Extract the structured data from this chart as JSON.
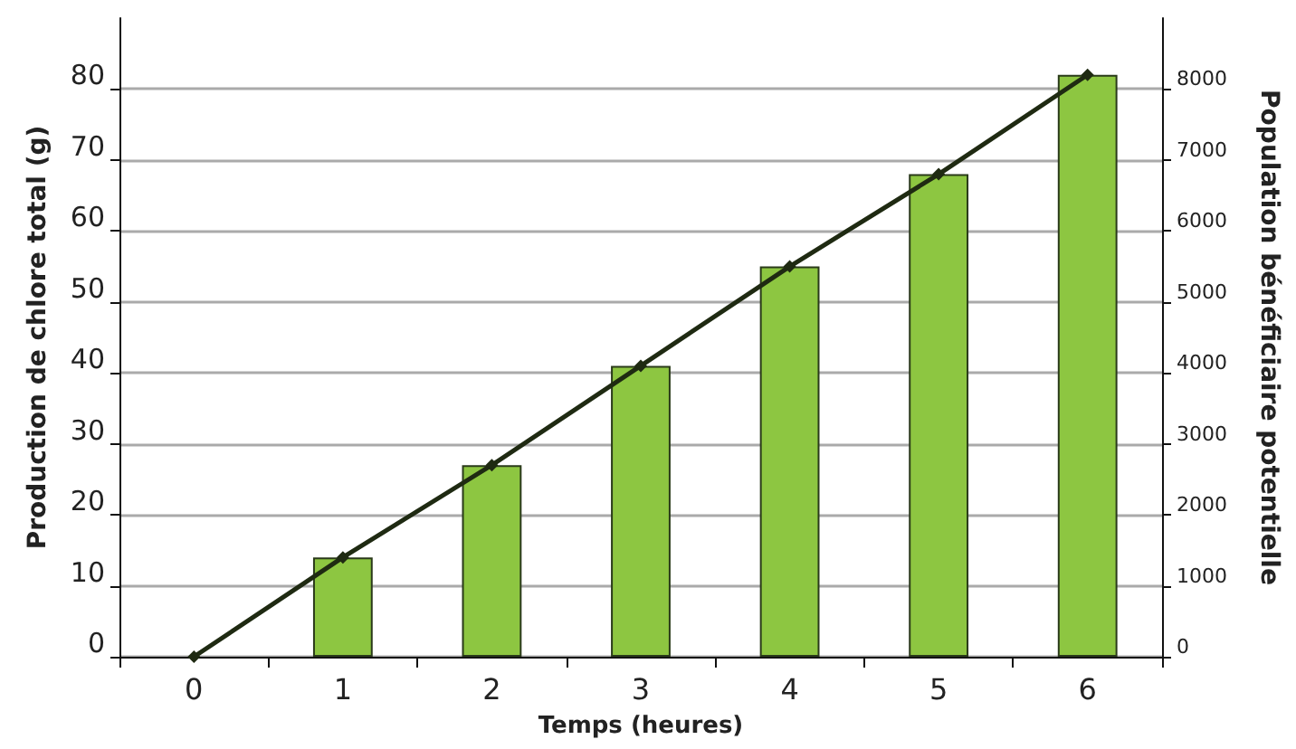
{
  "chart_data": {
    "type": "bar",
    "xlabel": "Temps (heures)",
    "ylabel": "Production de chlore total (g)",
    "y2label": "Population bénéficiaire potentielle",
    "categories": [
      "0",
      "1",
      "2",
      "3",
      "4",
      "5",
      "6"
    ],
    "series": [
      {
        "color": "#8dc641",
        "values": [
          null,
          14,
          27,
          41,
          55,
          68,
          82
        ]
      },
      {
        "type": "line",
        "axis": "y2",
        "color": "#1f2a12",
        "marker": "diamond",
        "line_style": "solid",
        "values": [
          0,
          1400,
          2700,
          4100,
          5500,
          6800,
          8200
        ]
      }
    ],
    "ylim": [
      0,
      90
    ],
    "yticks": [
      0,
      10,
      20,
      30,
      40,
      50,
      60,
      70,
      80
    ],
    "y2lim": [
      0,
      9000
    ],
    "y2ticks": [
      0,
      1000,
      2000,
      3000,
      4000,
      5000,
      6000,
      7000,
      8000
    ],
    "grid": "y"
  }
}
